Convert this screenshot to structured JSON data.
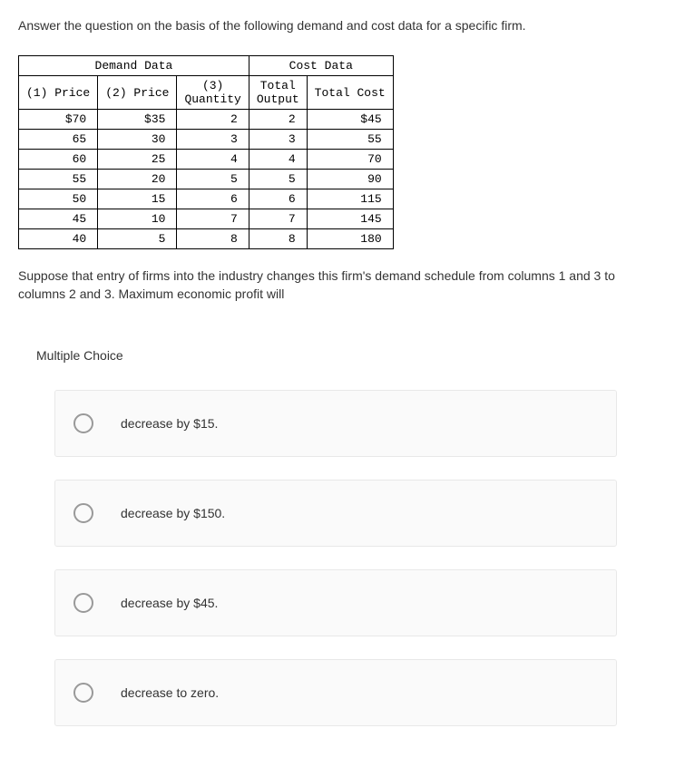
{
  "question": "Answer the question on the basis of the following demand and cost data for a specific firm.",
  "table": {
    "section_headers": {
      "demand": "Demand Data",
      "cost": "Cost Data"
    },
    "column_headers": {
      "price1": "(1) Price",
      "price2": "(2) Price",
      "quantity_line1": "(3)",
      "quantity_line2": "Quantity",
      "output_line1": "Total",
      "output_line2": "Output",
      "total_cost": "Total Cost"
    },
    "rows": [
      {
        "price1": "$70",
        "price2": "$35",
        "quantity": "2",
        "output": "2",
        "cost": "$45"
      },
      {
        "price1": "65",
        "price2": "30",
        "quantity": "3",
        "output": "3",
        "cost": "55"
      },
      {
        "price1": "60",
        "price2": "25",
        "quantity": "4",
        "output": "4",
        "cost": "70"
      },
      {
        "price1": "55",
        "price2": "20",
        "quantity": "5",
        "output": "5",
        "cost": "90"
      },
      {
        "price1": "50",
        "price2": "15",
        "quantity": "6",
        "output": "6",
        "cost": "115"
      },
      {
        "price1": "45",
        "price2": "10",
        "quantity": "7",
        "output": "7",
        "cost": "145"
      },
      {
        "price1": "40",
        "price2": "5",
        "quantity": "8",
        "output": "8",
        "cost": "180"
      }
    ]
  },
  "followup": "Suppose that entry of firms into the industry changes this firm's demand schedule from columns 1 and 3 to columns 2 and 3. Maximum economic profit will",
  "mc_label": "Multiple Choice",
  "options": [
    {
      "text": "decrease by $15."
    },
    {
      "text": "decrease by $150."
    },
    {
      "text": "decrease by $45."
    },
    {
      "text": "decrease to zero."
    }
  ],
  "styling": {
    "body_bg": "#ffffff",
    "text_color": "#333333",
    "border_color": "#000000",
    "option_bg": "#fafafa",
    "option_border": "#e8e8e8",
    "radio_border": "#999999",
    "question_fontsize": 14,
    "table_fontsize": 13,
    "mono_font": "Courier New"
  }
}
